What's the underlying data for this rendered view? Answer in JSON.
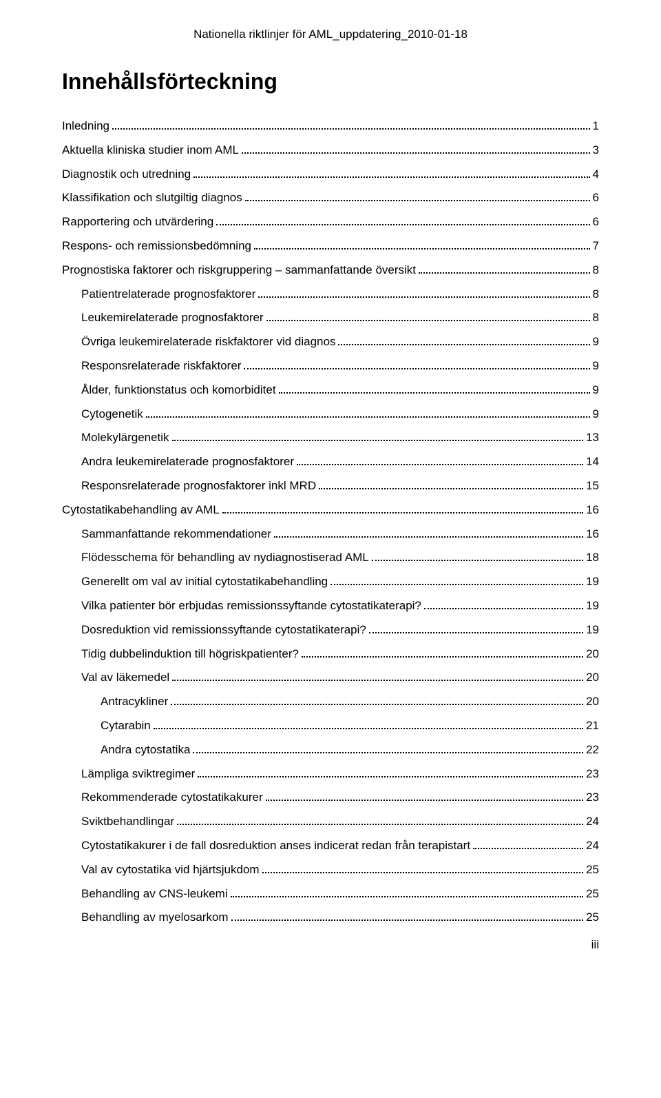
{
  "header": "Nationella riktlinjer för AML_uppdatering_2010-01-18",
  "title": "Innehållsförteckning",
  "footer_page": "iii",
  "toc": [
    {
      "label": "Inledning",
      "page": "1",
      "indent": 0
    },
    {
      "label": "Aktuella kliniska studier inom AML",
      "page": "3",
      "indent": 0
    },
    {
      "label": "Diagnostik och utredning",
      "page": "4",
      "indent": 0
    },
    {
      "label": "Klassifikation och slutgiltig diagnos",
      "page": "6",
      "indent": 0
    },
    {
      "label": "Rapportering och utvärdering",
      "page": "6",
      "indent": 0
    },
    {
      "label": "Respons- och remissionsbedömning",
      "page": "7",
      "indent": 0
    },
    {
      "label": "Prognostiska faktorer och riskgruppering – sammanfattande översikt",
      "page": "8",
      "indent": 0
    },
    {
      "label": "Patientrelaterade prognosfaktorer",
      "page": "8",
      "indent": 1
    },
    {
      "label": "Leukemirelaterade prognosfaktorer",
      "page": "8",
      "indent": 1
    },
    {
      "label": "Övriga leukemirelaterade riskfaktorer vid diagnos",
      "page": "9",
      "indent": 1
    },
    {
      "label": "Responsrelaterade riskfaktorer",
      "page": "9",
      "indent": 1
    },
    {
      "label": "Ålder, funktionstatus och komorbiditet",
      "page": "9",
      "indent": 1
    },
    {
      "label": "Cytogenetik",
      "page": "9",
      "indent": 1
    },
    {
      "label": "Molekylärgenetik",
      "page": "13",
      "indent": 1
    },
    {
      "label": "Andra leukemirelaterade prognosfaktorer",
      "page": "14",
      "indent": 1
    },
    {
      "label": "Responsrelaterade prognosfaktorer inkl MRD",
      "page": "15",
      "indent": 1
    },
    {
      "label": "Cytostatikabehandling av AML",
      "page": "16",
      "indent": 0
    },
    {
      "label": "Sammanfattande rekommendationer",
      "page": "16",
      "indent": 1
    },
    {
      "label": "Flödesschema för behandling av nydiagnostiserad AML",
      "page": "18",
      "indent": 1
    },
    {
      "label": "Generellt om val av initial cytostatikabehandling",
      "page": "19",
      "indent": 1
    },
    {
      "label": "Vilka patienter bör erbjudas remissionssyftande cytostatikaterapi?",
      "page": "19",
      "indent": 1
    },
    {
      "label": "Dosreduktion vid remissionssyftande cytostatikaterapi?",
      "page": "19",
      "indent": 1
    },
    {
      "label": "Tidig dubbelinduktion till högriskpatienter?",
      "page": "20",
      "indent": 1
    },
    {
      "label": "Val av läkemedel",
      "page": "20",
      "indent": 1
    },
    {
      "label": "Antracykliner",
      "page": "20",
      "indent": 2
    },
    {
      "label": "Cytarabin",
      "page": "21",
      "indent": 2
    },
    {
      "label": "Andra cytostatika",
      "page": "22",
      "indent": 2
    },
    {
      "label": "Lämpliga sviktregimer",
      "page": "23",
      "indent": 1
    },
    {
      "label": "Rekommenderade cytostatikakurer",
      "page": "23",
      "indent": 1
    },
    {
      "label": "Sviktbehandlingar",
      "page": "24",
      "indent": 1
    },
    {
      "label": "Cytostatikakurer i de fall dosreduktion anses indicerat redan från terapistart",
      "page": "24",
      "indent": 1
    },
    {
      "label": "Val av cytostatika vid hjärtsjukdom",
      "page": "25",
      "indent": 1
    },
    {
      "label": "Behandling av CNS-leukemi",
      "page": "25",
      "indent": 1
    },
    {
      "label": "Behandling av myelosarkom",
      "page": "25",
      "indent": 1
    }
  ]
}
